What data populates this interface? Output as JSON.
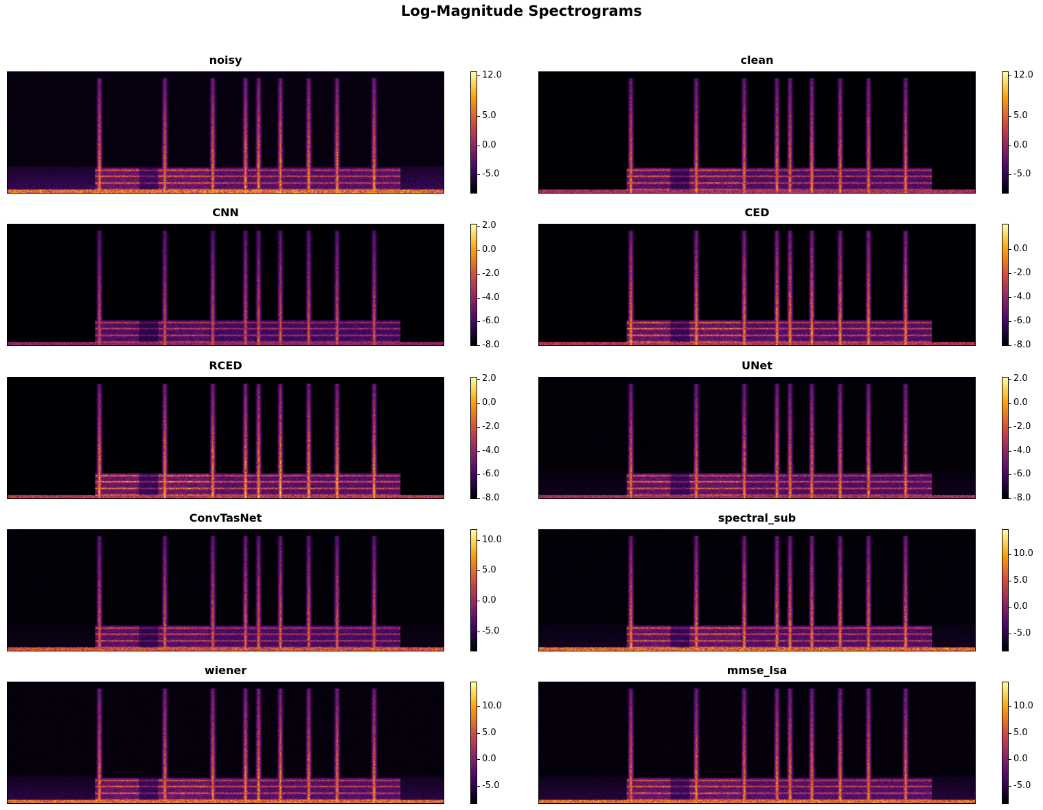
{
  "figure_title": "Log-Magnitude Spectrograms",
  "colormap": [
    "#000004",
    "#420a68",
    "#932667",
    "#dd513a",
    "#fca50a",
    "#fcffa4"
  ],
  "chart_data": [
    {
      "type": "heatmap",
      "title": "noisy",
      "colorbar_range": [
        -8.2,
        12.7
      ],
      "colorbar_ticks": [
        "12.0",
        "5.0",
        "0.0",
        "-5.0"
      ],
      "colorbar_tick_values": [
        12,
        5,
        0,
        -5
      ]
    },
    {
      "type": "heatmap",
      "title": "clean",
      "colorbar_range": [
        -8.2,
        12.7
      ],
      "colorbar_ticks": [
        "12.0",
        "5.0",
        "0.0",
        "-5.0"
      ],
      "colorbar_tick_values": [
        12,
        5,
        0,
        -5
      ]
    },
    {
      "type": "heatmap",
      "title": "CNN",
      "colorbar_range": [
        -8.0,
        2.2
      ],
      "colorbar_ticks": [
        "2.0",
        "0.0",
        "-2.0",
        "-4.0",
        "-6.0",
        "-8.0"
      ],
      "colorbar_tick_values": [
        2,
        0,
        -2,
        -4,
        -6,
        -8
      ]
    },
    {
      "type": "heatmap",
      "title": "CED",
      "colorbar_range": [
        -8.0,
        2.1
      ],
      "colorbar_ticks": [
        "0.0",
        "-2.0",
        "-4.0",
        "-6.0",
        "-8.0"
      ],
      "colorbar_tick_values": [
        0,
        -2,
        -4,
        -6,
        -8
      ]
    },
    {
      "type": "heatmap",
      "title": "RCED",
      "colorbar_range": [
        -8.0,
        2.2
      ],
      "colorbar_ticks": [
        "2.0",
        "0.0",
        "-2.0",
        "-4.0",
        "-6.0",
        "-8.0"
      ],
      "colorbar_tick_values": [
        2,
        0,
        -2,
        -4,
        -6,
        -8
      ]
    },
    {
      "type": "heatmap",
      "title": "UNet",
      "colorbar_range": [
        -8.0,
        2.2
      ],
      "colorbar_ticks": [
        "2.0",
        "0.0",
        "-2.0",
        "-4.0",
        "-6.0",
        "-8.0"
      ],
      "colorbar_tick_values": [
        2,
        0,
        -2,
        -4,
        -6,
        -8
      ]
    },
    {
      "type": "heatmap",
      "title": "ConvTasNet",
      "colorbar_range": [
        -8.2,
        11.8
      ],
      "colorbar_ticks": [
        "10.0",
        "5.0",
        "0.0",
        "-5.0"
      ],
      "colorbar_tick_values": [
        10,
        5,
        0,
        -5
      ]
    },
    {
      "type": "heatmap",
      "title": "spectral_sub",
      "colorbar_range": [
        -8.2,
        14.6
      ],
      "colorbar_ticks": [
        "10.0",
        "5.0",
        "0.0",
        "-5.0"
      ],
      "colorbar_tick_values": [
        10,
        5,
        0,
        -5
      ]
    },
    {
      "type": "heatmap",
      "title": "wiener",
      "colorbar_range": [
        -8.2,
        14.6
      ],
      "colorbar_ticks": [
        "10.0",
        "5.0",
        "0.0",
        "-5.0"
      ],
      "colorbar_tick_values": [
        10,
        5,
        0,
        -5
      ]
    },
    {
      "type": "heatmap",
      "title": "mmse_lsa",
      "colorbar_range": [
        -8.2,
        14.6
      ],
      "colorbar_ticks": [
        "10.0",
        "5.0",
        "0.0",
        "-5.0"
      ],
      "colorbar_tick_values": [
        10,
        5,
        0,
        -5
      ]
    }
  ]
}
